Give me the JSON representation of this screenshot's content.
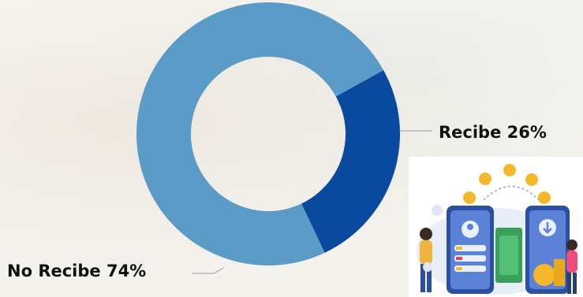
{
  "chart_data": {
    "type": "pie",
    "donut": true,
    "title": "",
    "slices": [
      {
        "label": "Recibe",
        "percent": 26,
        "color": "#0a4a9e",
        "display": "Recibe 26%"
      },
      {
        "label": "No Recibe",
        "percent": 74,
        "color": "#5b9bc7",
        "display": "No Recibe 74%"
      }
    ]
  },
  "illustration": {
    "icon": "mobile-money-transfer-illustration"
  }
}
